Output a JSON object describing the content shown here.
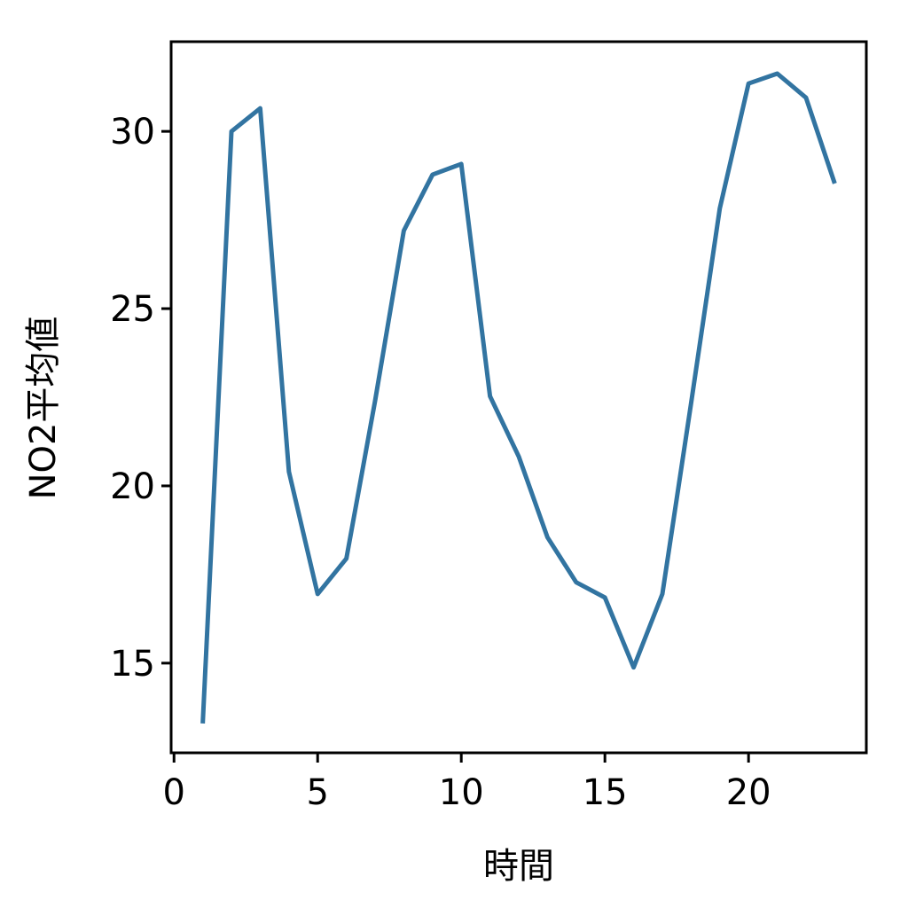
{
  "chart_data": {
    "type": "line",
    "x_label": "時間",
    "y_label": "NO2平均値",
    "x": [
      1,
      2,
      3,
      4,
      5,
      6,
      7,
      8,
      9,
      10,
      11,
      12,
      13,
      14,
      15,
      16,
      17,
      18,
      19,
      20,
      21,
      22,
      23
    ],
    "series": [
      {
        "color": "#3274a1",
        "values": [
          13.3,
          30.0,
          30.65,
          20.4,
          16.95,
          17.95,
          22.4,
          27.2,
          28.78,
          29.08,
          22.53,
          20.83,
          18.55,
          17.28,
          16.85,
          14.88,
          16.95,
          22.33,
          27.83,
          31.35,
          31.63,
          30.95,
          28.53
        ]
      }
    ],
    "xlim": [
      -0.1,
      24.1
    ],
    "ylim": [
      12.47,
      32.53
    ],
    "xticks": [
      0,
      5,
      10,
      15,
      20
    ],
    "yticks": [
      15,
      20,
      25,
      30
    ],
    "grid": false
  }
}
